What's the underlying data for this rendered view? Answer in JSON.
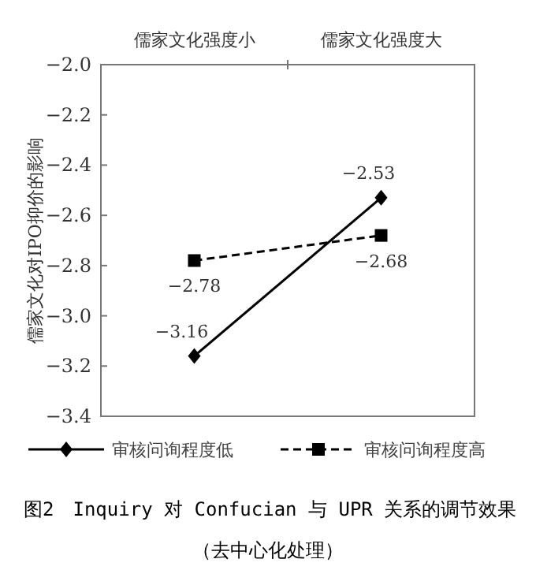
{
  "chart_data": {
    "type": "line",
    "title": "图2　Inquiry 对 Confucian 与 UPR 关系的调节效果",
    "subtitle": "（去中心化处理）",
    "ylabel": "儒家文化对IPO抑价的影响",
    "categories": [
      "儒家文化强度小",
      "儒家文化强度大"
    ],
    "ylim": [
      -3.4,
      -2.0
    ],
    "yticks": [
      {
        "value": -2.0,
        "label": "−2.0"
      },
      {
        "value": -2.2,
        "label": "−2.2"
      },
      {
        "value": -2.4,
        "label": "−2.4"
      },
      {
        "value": -2.6,
        "label": "−2.6"
      },
      {
        "value": -2.8,
        "label": "−2.8"
      },
      {
        "value": -3.0,
        "label": "−3.0"
      },
      {
        "value": -3.2,
        "label": "−3.2"
      },
      {
        "value": -3.4,
        "label": "−3.4"
      }
    ],
    "series": [
      {
        "name": "审核问询程度低",
        "color": "#000000",
        "values": [
          -3.16,
          -2.53
        ],
        "marker": "diamond",
        "line_style": "solid"
      },
      {
        "name": "审核问询程度高",
        "color": "#000000",
        "values": [
          -2.78,
          -2.68
        ],
        "marker": "square",
        "line_style": "dashed"
      }
    ],
    "data_labels": true,
    "legend": "bottom",
    "grid": false
  }
}
